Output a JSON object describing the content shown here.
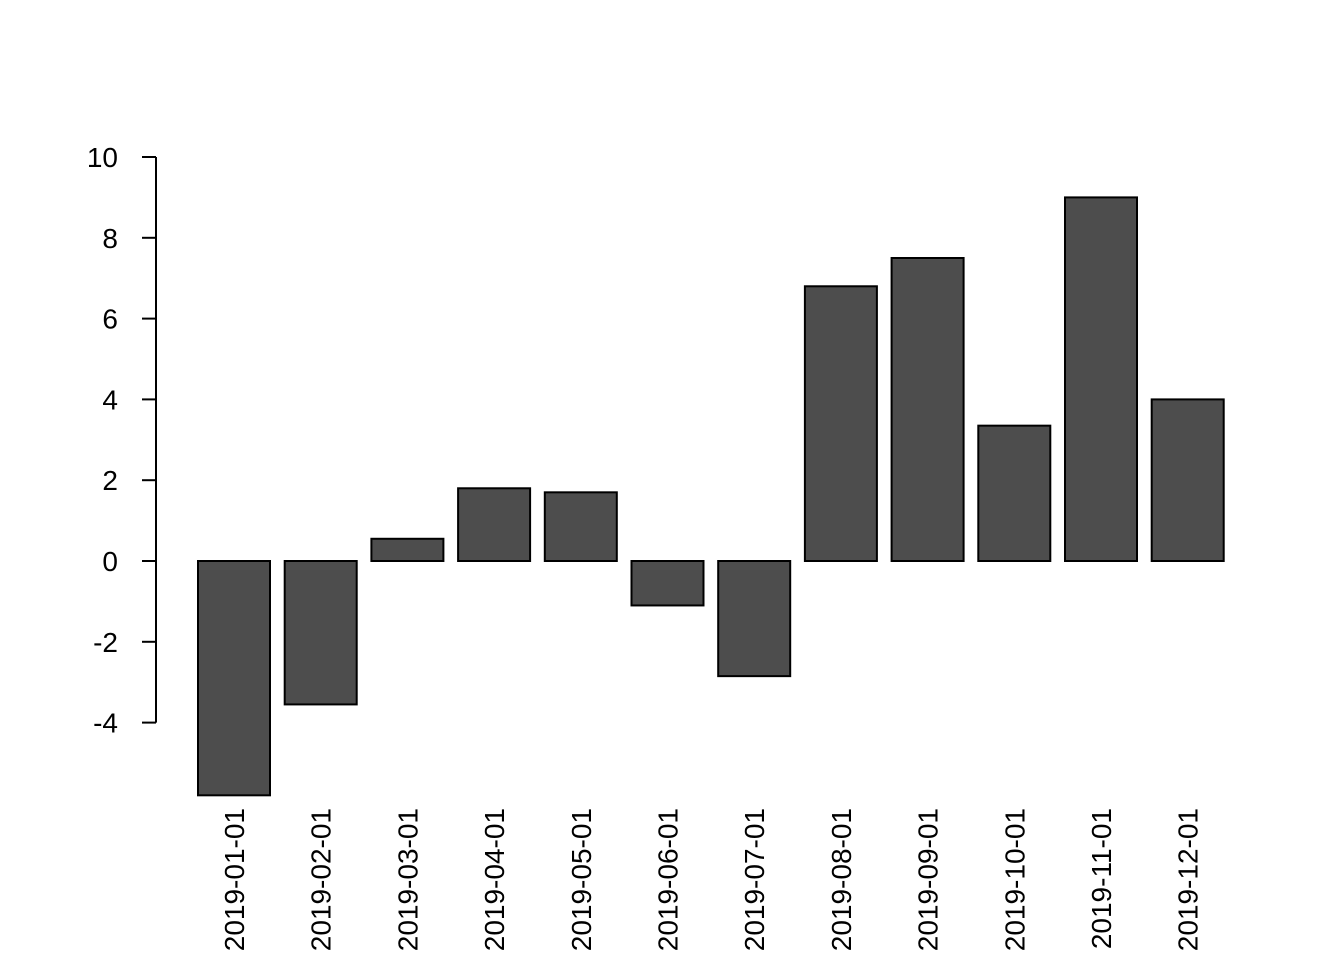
{
  "chart_data": {
    "type": "bar",
    "title": "",
    "xlabel": "",
    "ylabel": "",
    "categories": [
      "2019-01-01",
      "2019-02-01",
      "2019-03-01",
      "2019-04-01",
      "2019-05-01",
      "2019-06-01",
      "2019-07-01",
      "2019-08-01",
      "2019-09-01",
      "2019-10-01",
      "2019-11-01",
      "2019-12-01"
    ],
    "values": [
      -5.8,
      -3.55,
      0.55,
      1.8,
      1.7,
      -1.1,
      -2.85,
      6.8,
      7.5,
      3.35,
      9.0,
      4.0
    ],
    "yticks": [
      -4,
      -2,
      0,
      2,
      4,
      6,
      8,
      10
    ],
    "ylim": [
      -5.8,
      10
    ],
    "grid": false,
    "bar_color": "#4d4d4d"
  }
}
